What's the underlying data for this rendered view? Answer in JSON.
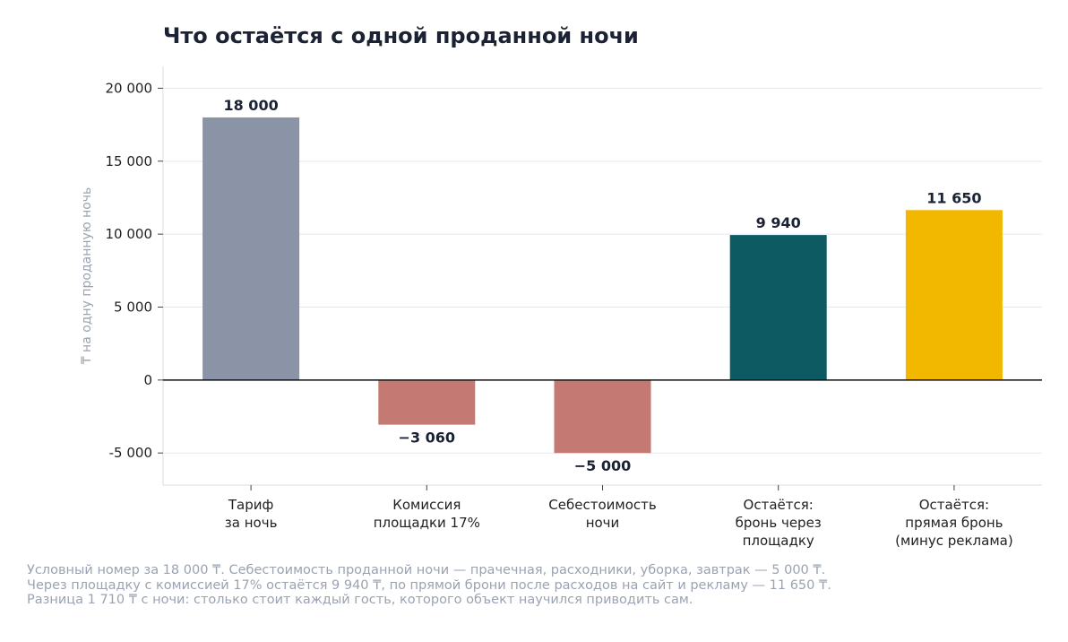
{
  "chart_data": {
    "type": "bar",
    "title": "Что остаётся с одной проданной ночи",
    "ylabel": "₸ на одну проданную ночь",
    "xlabel": "",
    "ylim": [
      -7200,
      21500
    ],
    "yticks": [
      -5000,
      0,
      5000,
      10000,
      15000,
      20000
    ],
    "ytick_labels": [
      "-5 000",
      "0",
      "5 000",
      "10 000",
      "15 000",
      "20 000"
    ],
    "grid": true,
    "categories": [
      [
        "Тариф",
        "за ночь"
      ],
      [
        "Комиссия",
        "площадки 17%"
      ],
      [
        "Себестоимость",
        "ночи"
      ],
      [
        "Остаётся:",
        "бронь через",
        "площадку"
      ],
      [
        "Остаётся:",
        "прямая бронь",
        "(минус реклама)"
      ]
    ],
    "values": [
      18000,
      -3060,
      -5000,
      9940,
      11650
    ],
    "value_labels": [
      "18 000",
      "−3 060",
      "−5 000",
      "9 940",
      "11 650"
    ],
    "colors": [
      "#8a94a6",
      "#c47a72",
      "#c47a72",
      "#0d5a63",
      "#f2b800"
    ]
  },
  "footnote": [
    "Условный номер за 18 000 ₸. Себестоимость проданной ночи — прачечная, расходники, уборка, завтрак — 5 000 ₸.",
    "Через площадку с комиссией 17% остаётся 9 940 ₸, по прямой брони после расходов на сайт и рекламу — 11 650 ₸.",
    "Разница 1 710 ₸ с ночи: столько стоит каждый гость, которого объект научился приводить сам."
  ]
}
